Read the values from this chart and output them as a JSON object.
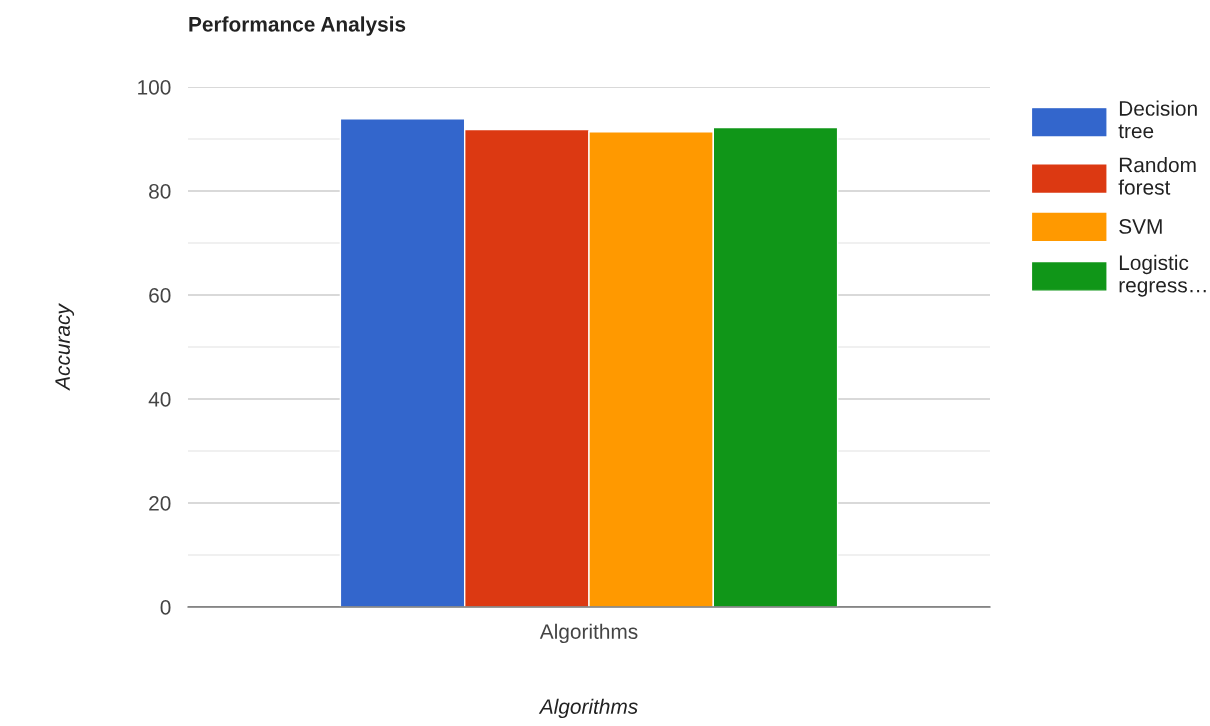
{
  "chart_data": {
    "type": "bar",
    "title": "Performance Analysis",
    "xlabel": "Algorithms",
    "ylabel": "Accuracy",
    "categories": [
      "Algorithms"
    ],
    "series": [
      {
        "name": "Decision tree",
        "color": "#3366cc",
        "values": [
          93.9
        ]
      },
      {
        "name": "Random forest",
        "color": "#dc3912",
        "values": [
          91.8
        ]
      },
      {
        "name": "SVM",
        "color": "#ff9900",
        "values": [
          91.4
        ]
      },
      {
        "name": "Logistic regress…",
        "color": "#109618",
        "values": [
          92.2
        ]
      }
    ],
    "ylim": [
      0,
      100
    ],
    "yticks": [
      0,
      {
        "value": 10,
        "label": null
      },
      20,
      {
        "value": 30,
        "label": null
      },
      40,
      {
        "value": 50,
        "label": null
      },
      60,
      {
        "value": 70,
        "label": null
      },
      80,
      {
        "value": 90,
        "label": null
      },
      100
    ],
    "grid": "y",
    "legend": "right"
  }
}
